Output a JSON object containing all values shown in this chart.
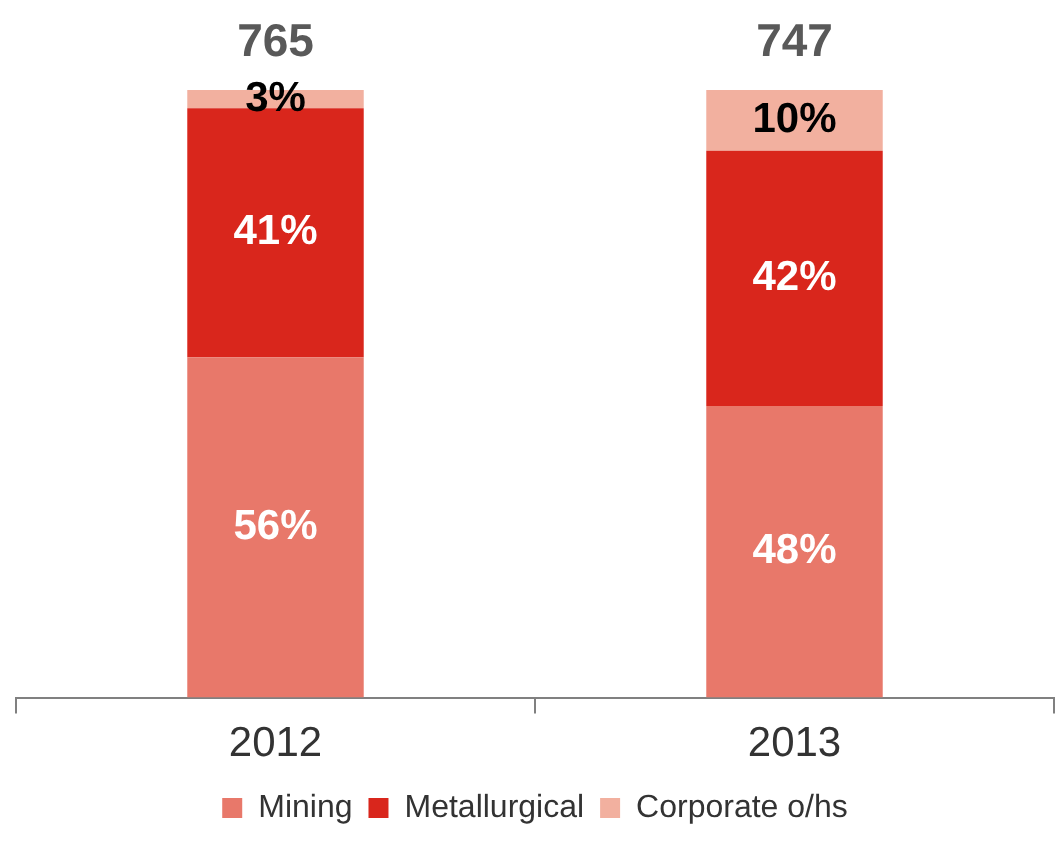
{
  "chart_data": {
    "type": "bar",
    "stacked": true,
    "tick_labels": "x",
    "categories": [
      "2012",
      "2013"
    ],
    "series": [
      {
        "name": "Mining",
        "color": "#e8786a",
        "values": [
          56,
          48
        ],
        "value_labels": [
          "56%",
          "48%"
        ]
      },
      {
        "name": "Metallurgical",
        "color": "#d9261c",
        "values": [
          41,
          42
        ],
        "value_labels": [
          "41%",
          "42%"
        ]
      },
      {
        "name": "Corporate o/hs",
        "color": "#f2b09f",
        "values": [
          3,
          10
        ],
        "value_labels": [
          "3%",
          "10%"
        ]
      }
    ],
    "annotations": [
      "765",
      "747"
    ],
    "legend": "bottom",
    "grid": false
  }
}
